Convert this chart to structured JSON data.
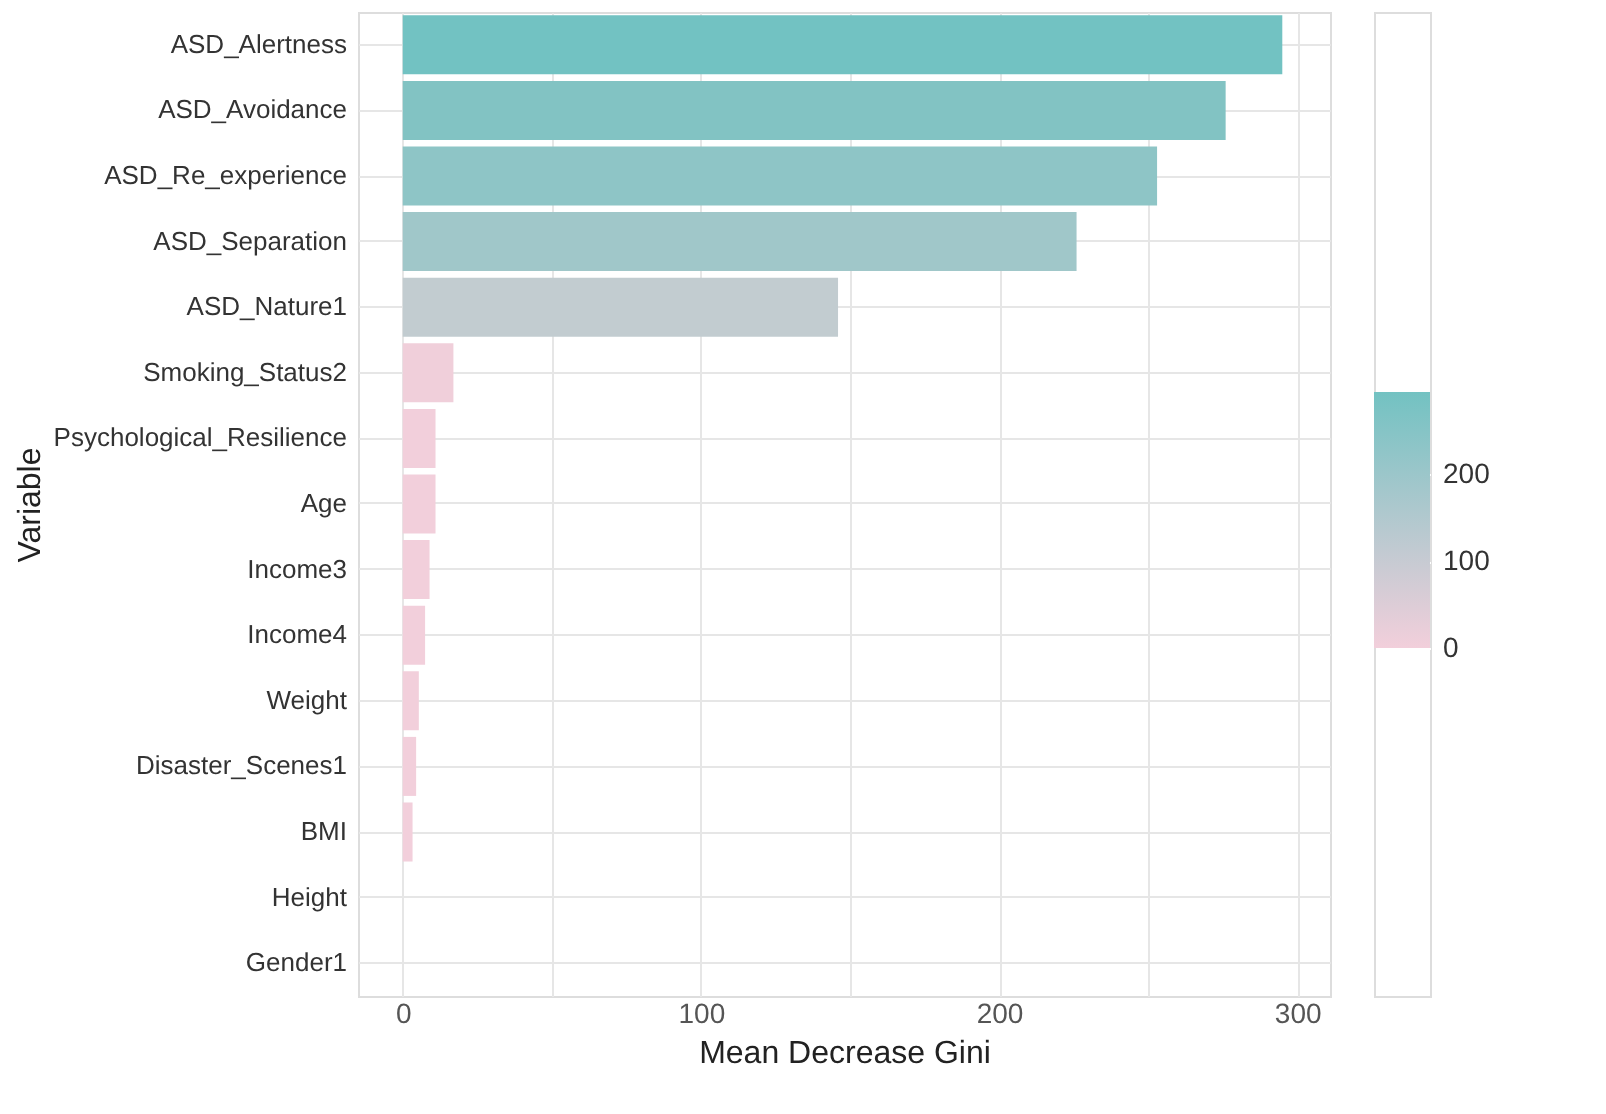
{
  "chart_data": {
    "type": "bar",
    "orientation": "horizontal",
    "xlabel": "Mean Decrease Gini",
    "ylabel": "Variable",
    "categories": [
      "ASD_Alertness",
      "ASD_Avoidance",
      "ASD_Re_experience",
      "ASD_Separation",
      "ASD_Nature1",
      "Smoking_Status2",
      "Psychological_Resilience",
      "Age",
      "Income3",
      "Income4",
      "Weight",
      "Disaster_Scenes1",
      "BMI",
      "Height",
      "Gender1"
    ],
    "values": [
      295,
      276,
      253,
      226,
      146,
      17,
      11,
      11,
      9,
      7.5,
      5.4,
      4.5,
      3.3,
      null,
      null
    ],
    "colors": [
      "#72c2c2",
      "#82c3c3",
      "#8ec5c6",
      "#a0c7c9",
      "#c2ccd0",
      "#f0cfda",
      "#f2cfdb",
      "#f2cfdb",
      "#f2cfdb",
      "#f2cfdb",
      "#f2cfdb",
      "#f2cfdb",
      "#f2cfdb",
      "#f2cfdb",
      "#f2cfdb"
    ],
    "xlim": [
      -15,
      311
    ],
    "xticks": [
      0,
      {
        "value": 50,
        "label": null
      },
      100,
      {
        "value": 150,
        "label": null
      },
      200,
      {
        "value": 250,
        "label": null
      },
      300
    ],
    "clim": [
      0,
      295
    ],
    "cticks": [
      0,
      100,
      200
    ],
    "grid": true
  }
}
